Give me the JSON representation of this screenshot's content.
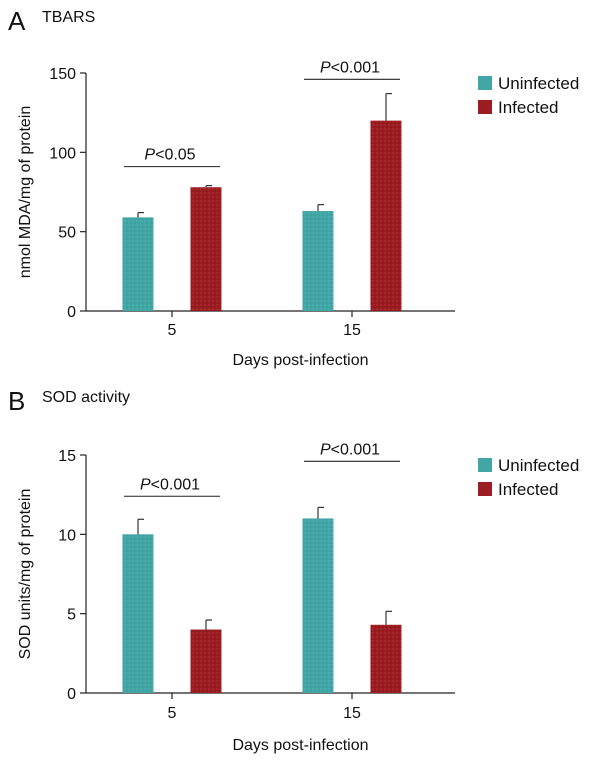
{
  "colors": {
    "uninfected": "#41a6a5",
    "infected": "#9c1d21",
    "axis": "#222222"
  },
  "chart_data": [
    {
      "type": "bar",
      "panel": "A",
      "title": "TBARS",
      "xlabel": "Days post-infection",
      "ylabel": "nmol MDA/mg of protein",
      "categories": [
        "5",
        "15"
      ],
      "ylim": [
        0,
        150
      ],
      "yticks": [
        0,
        50,
        100,
        150
      ],
      "legend_position": "top-right",
      "series": [
        {
          "name": "Uninfected",
          "values": [
            59,
            63
          ],
          "errors": [
            3,
            4
          ]
        },
        {
          "name": "Infected",
          "values": [
            78,
            120
          ],
          "errors": [
            1,
            17
          ]
        }
      ],
      "annotations": [
        {
          "category": "5",
          "prefix": "P",
          "text": "<0.05",
          "y": 91
        },
        {
          "category": "15",
          "prefix": "P",
          "text": "<0.001",
          "y": 146
        }
      ]
    },
    {
      "type": "bar",
      "panel": "B",
      "title": "SOD activity",
      "xlabel": "Days post-infection",
      "ylabel": "SOD units/mg of protein",
      "categories": [
        "5",
        "15"
      ],
      "ylim": [
        0,
        15
      ],
      "yticks": [
        0,
        5,
        10,
        15
      ],
      "legend_position": "top-right",
      "series": [
        {
          "name": "Uninfected",
          "values": [
            10.0,
            11.0
          ],
          "errors": [
            0.95,
            0.7
          ]
        },
        {
          "name": "Infected",
          "values": [
            4.0,
            4.3
          ],
          "errors": [
            0.6,
            0.85
          ]
        }
      ],
      "annotations": [
        {
          "category": "5",
          "prefix": "P",
          "text": "<0.001",
          "y": 12.4
        },
        {
          "category": "15",
          "prefix": "P",
          "text": "<0.001",
          "y": 14.6
        }
      ]
    }
  ]
}
